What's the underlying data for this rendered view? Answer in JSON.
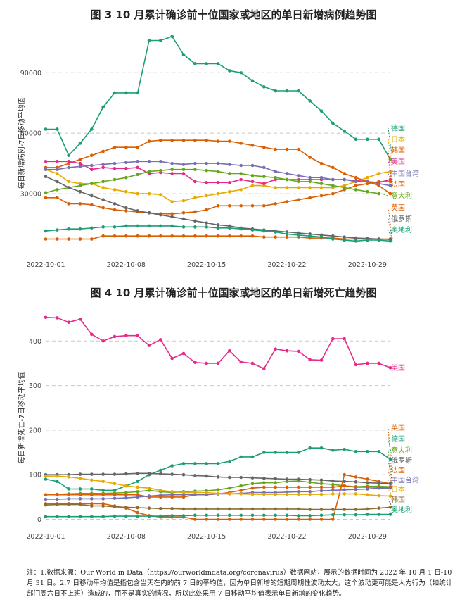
{
  "fig1": {
    "title": "图 3  10 月累计确诊前十位国家或地区的单日新增病例趋势图",
    "chart_data": {
      "type": "line",
      "ylabel": "每日新增病例-7日移动平均值",
      "ylim": [
        0,
        110000
      ],
      "yticks": [
        30000,
        60000,
        90000
      ],
      "ytick_labels": [
        "30000",
        "60000",
        "90000"
      ],
      "xlim": [
        1,
        31
      ],
      "xticks": [
        1,
        8,
        15,
        22,
        29
      ],
      "xtick_labels": [
        "2022-10-01",
        "2022-10-08",
        "2022-10-15",
        "2022-10-22",
        "2022-10-29"
      ],
      "series": [
        {
          "name": "德国",
          "color": "#1b9e77",
          "label_y": 62500,
          "values": [
            62000,
            62000,
            49000,
            55000,
            62000,
            73000,
            80000,
            80000,
            80000,
            106000,
            106000,
            108000,
            99000,
            94500,
            94500,
            94500,
            91000,
            90000,
            86000,
            83000,
            81000,
            81000,
            81000,
            76000,
            71000,
            65000,
            61000,
            57000,
            57000,
            57000,
            47000
          ]
        },
        {
          "name": "日本",
          "color": "#e6ab02",
          "label_y": 57000,
          "values": [
            42000,
            40000,
            36000,
            35000,
            35000,
            33000,
            32000,
            31000,
            30000,
            30000,
            29500,
            26000,
            26500,
            28000,
            29000,
            30000,
            31000,
            32000,
            34000,
            34000,
            33000,
            33000,
            33000,
            33000,
            33000,
            33000,
            34000,
            36000,
            38000,
            40000,
            41000
          ]
        },
        {
          "name": "韩国",
          "color": "#d95f02",
          "label_y": 51500,
          "values": [
            43000,
            43000,
            45000,
            47000,
            49000,
            51000,
            53000,
            53000,
            53000,
            56000,
            56500,
            56500,
            56500,
            56500,
            56500,
            56000,
            56000,
            55000,
            54000,
            53000,
            52000,
            52000,
            52000,
            48000,
            45000,
            43000,
            40000,
            38000,
            36000,
            34000,
            30000
          ]
        },
        {
          "name": "美国",
          "color": "#e7298a",
          "label_y": 46000,
          "values": [
            46000,
            46000,
            46000,
            45000,
            42000,
            43000,
            42500,
            42500,
            43000,
            40000,
            40500,
            40000,
            40000,
            36000,
            35500,
            35500,
            35500,
            37000,
            36000,
            35000,
            37000,
            37000,
            37000,
            37000,
            37000,
            37000,
            37000,
            36500,
            36000,
            35500,
            37000
          ]
        },
        {
          "name": "中国台湾",
          "color": "#7570b3",
          "label_y": 40000,
          "values": [
            42000,
            42000,
            43000,
            43500,
            44000,
            44500,
            45000,
            45500,
            46000,
            46000,
            46000,
            45000,
            44500,
            45000,
            45000,
            45000,
            44500,
            44000,
            44000,
            43000,
            41000,
            40000,
            39000,
            38000,
            38000,
            37000,
            37000,
            36000,
            36000,
            35000,
            34000
          ]
        },
        {
          "name": "法国",
          "color": "#d95f02",
          "label_y": 34500,
          "values": [
            28000,
            28000,
            25000,
            25000,
            24500,
            23000,
            22000,
            21500,
            21000,
            20500,
            20000,
            20000,
            20500,
            21000,
            22000,
            24000,
            24000,
            24000,
            24000,
            24000,
            25000,
            26000,
            27000,
            28000,
            29000,
            30000,
            32000,
            34000,
            35000,
            36000,
            36000
          ]
        },
        {
          "name": "意大利",
          "color": "#66a61e",
          "label_y": 29000,
          "values": [
            30500,
            32000,
            33000,
            34000,
            35000,
            36000,
            37000,
            38000,
            39500,
            41000,
            41500,
            42000,
            42000,
            42000,
            41500,
            41000,
            40000,
            40000,
            39000,
            38500,
            38000,
            37000,
            36000,
            36000,
            35000,
            34000,
            33000,
            32000,
            31000,
            30000,
            null
          ]
        },
        {
          "name": "英国",
          "color": "#d95f02",
          "label_y": 23000,
          "values": [
            7500,
            7500,
            7500,
            7500,
            7500,
            9000,
            9000,
            9000,
            9000,
            9000,
            9000,
            9000,
            9000,
            9000,
            9000,
            9000,
            9000,
            9000,
            9000,
            8500,
            8500,
            8500,
            8500,
            8000,
            8000,
            8000,
            7500,
            7500,
            7500,
            7500,
            7500
          ]
        },
        {
          "name": "俄罗斯",
          "color": "#666666",
          "label_y": 17500,
          "values": [
            38500,
            36000,
            33000,
            31000,
            29000,
            27000,
            25000,
            23000,
            21500,
            20500,
            19500,
            18500,
            17500,
            16500,
            15500,
            14500,
            14000,
            13000,
            12500,
            12000,
            11500,
            11000,
            10500,
            10000,
            9500,
            9000,
            8500,
            8000,
            7800,
            7500,
            7300
          ]
        },
        {
          "name": "奥地利",
          "color": "#1b9e77",
          "label_y": 12000,
          "values": [
            11500,
            12000,
            12500,
            12500,
            13000,
            13500,
            13500,
            14000,
            14000,
            14000,
            14000,
            14000,
            13500,
            13500,
            13500,
            13000,
            13000,
            12500,
            12000,
            11500,
            11000,
            10000,
            9500,
            9000,
            8500,
            7500,
            7000,
            6500,
            7000,
            7000,
            6500
          ]
        }
      ]
    }
  },
  "fig2": {
    "title": "图 4  10 月累计确诊前十位国家或地区的单日新增死亡趋势图",
    "chart_data": {
      "type": "line",
      "ylabel": "每日新增死亡-7日移动平均值",
      "ylim": [
        -15,
        470
      ],
      "yticks": [
        0,
        100,
        200,
        300,
        400
      ],
      "ytick_labels": [
        "0",
        "100",
        "200",
        "300",
        "400"
      ],
      "xlim": [
        1,
        31
      ],
      "xticks": [
        1,
        8,
        15,
        22,
        29
      ],
      "xtick_labels": [
        "2022-10-01",
        "2022-10-08",
        "2022-10-15",
        "2022-10-22",
        "2022-10-29"
      ],
      "series": [
        {
          "name": "美国",
          "color": "#e7298a",
          "label_y": 340,
          "values": [
            453,
            452,
            442,
            449,
            415,
            400,
            410,
            412,
            412,
            390,
            403,
            361,
            372,
            352,
            350,
            350,
            378,
            353,
            350,
            338,
            382,
            378,
            377,
            358,
            357,
            405,
            405,
            347,
            350,
            350,
            340
          ]
        },
        {
          "name": "英国",
          "color": "#d95f02",
          "label_y": 205,
          "values": [
            35,
            35,
            35,
            35,
            35,
            35,
            30,
            25,
            15,
            8,
            5,
            5,
            5,
            0,
            0,
            0,
            0,
            0,
            0,
            0,
            0,
            0,
            0,
            0,
            0,
            0,
            100,
            95,
            90,
            85,
            80
          ]
        },
        {
          "name": "德国",
          "color": "#1b9e77",
          "label_y": 180,
          "values": [
            90,
            85,
            68,
            68,
            68,
            65,
            65,
            75,
            85,
            100,
            110,
            120,
            125,
            125,
            125,
            125,
            130,
            140,
            140,
            150,
            150,
            150,
            150,
            160,
            160,
            155,
            157,
            152,
            152,
            152,
            135
          ]
        },
        {
          "name": "意大利",
          "color": "#66a61e",
          "label_y": 155,
          "values": [
            55,
            56,
            57,
            58,
            58,
            58,
            59,
            60,
            62,
            65,
            62,
            60,
            62,
            63,
            64,
            66,
            70,
            75,
            80,
            82,
            82,
            85,
            86,
            83,
            80,
            78,
            75,
            73,
            74,
            74,
            73
          ]
        },
        {
          "name": "俄罗斯",
          "color": "#666666",
          "label_y": 132,
          "values": [
            100,
            100,
            100,
            101,
            101,
            101,
            101,
            102,
            103,
            103,
            102,
            101,
            100,
            98,
            97,
            95,
            94,
            94,
            93,
            92,
            91,
            90,
            90,
            89,
            88,
            86,
            85,
            84,
            82,
            81,
            80
          ]
        },
        {
          "name": "法国",
          "color": "#d95f02",
          "label_y": 110,
          "values": [
            55,
            55,
            55,
            55,
            55,
            55,
            55,
            55,
            55,
            50,
            50,
            50,
            50,
            55,
            55,
            57,
            60,
            65,
            70,
            72,
            72,
            72,
            72,
            72,
            72,
            72,
            75,
            72,
            72,
            72,
            72
          ]
        },
        {
          "name": "中国台湾",
          "color": "#7570b3",
          "label_y": 88,
          "values": [
            45,
            45,
            46,
            46,
            46,
            46,
            47,
            48,
            50,
            52,
            54,
            55,
            55,
            56,
            56,
            57,
            57,
            58,
            60,
            60,
            60,
            61,
            62,
            62,
            64,
            65,
            66,
            67,
            68,
            70,
            70
          ]
        },
        {
          "name": "日本",
          "color": "#e6ab02",
          "label_y": 67,
          "values": [
            97,
            97,
            95,
            92,
            88,
            85,
            80,
            75,
            72,
            70,
            65,
            62,
            60,
            60,
            60,
            58,
            57,
            57,
            56,
            56,
            56,
            56,
            56,
            56,
            56,
            57,
            57,
            57,
            55,
            53,
            52
          ]
        },
        {
          "name": "韩国",
          "color": "#8c6d31",
          "label_y": 44,
          "values": [
            32,
            33,
            33,
            33,
            30,
            30,
            28,
            27,
            26,
            25,
            24,
            24,
            23,
            23,
            23,
            23,
            23,
            23,
            23,
            23,
            23,
            23,
            23,
            22,
            22,
            22,
            22,
            22,
            23,
            25,
            27
          ]
        },
        {
          "name": "奥地利",
          "color": "#1b9e77",
          "label_y": 21,
          "values": [
            6,
            6,
            6,
            6,
            6,
            6,
            7,
            7,
            7,
            7,
            7,
            8,
            8,
            9,
            9,
            9,
            9,
            9,
            9,
            9,
            9,
            9,
            8,
            8,
            9,
            10,
            10,
            10,
            11,
            11,
            11
          ]
        }
      ]
    }
  },
  "note": "注：1.数据来源：Our World in Data（https://ourworldindata.org/coronavirus）数据网站，展示的数据时间为 2022 年 10 月 1 日-10 月 31 日。2.7 日移动平均值是指包含当天在内的前 7 日的平均值，因为单日新增的短期周期性波动太大，这个波动更可能是人为行为（如统计部门周六日不上班）造成的，而不是真实的情况，所以此处采用 7 日移动平均值表示单日新增的变化趋势。"
}
